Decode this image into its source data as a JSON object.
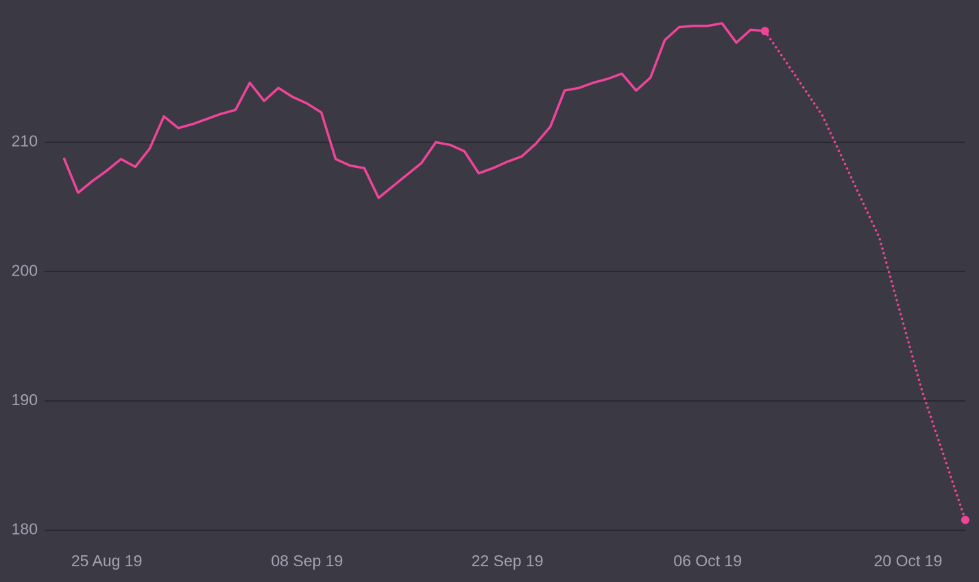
{
  "chart_data": {
    "type": "line",
    "xlim": [
      "2019-08-22",
      "2019-10-24"
    ],
    "xticks": [
      {
        "value": "2019-08-25",
        "label": "25 Aug 19"
      },
      {
        "value": "2019-09-08",
        "label": "08 Sep 19"
      },
      {
        "value": "2019-09-22",
        "label": "22 Sep 19"
      },
      {
        "value": "2019-10-06",
        "label": "06 Oct 19"
      },
      {
        "value": "2019-10-20",
        "label": "20 Oct 19"
      }
    ],
    "ylim": [
      176,
      221
    ],
    "yticks": [
      180,
      190,
      200,
      210
    ],
    "grid": true,
    "series": [
      {
        "color": "#f0449a",
        "style": "solid",
        "x": [
          "2019-08-22",
          "2019-08-23",
          "2019-08-24",
          "2019-08-25",
          "2019-08-26",
          "2019-08-27",
          "2019-08-28",
          "2019-08-29",
          "2019-08-30",
          "2019-08-31",
          "2019-09-01",
          "2019-09-02",
          "2019-09-03",
          "2019-09-04",
          "2019-09-05",
          "2019-09-06",
          "2019-09-07",
          "2019-09-08",
          "2019-09-09",
          "2019-09-10",
          "2019-09-11",
          "2019-09-12",
          "2019-09-13",
          "2019-09-14",
          "2019-09-15",
          "2019-09-16",
          "2019-09-17",
          "2019-09-18",
          "2019-09-19",
          "2019-09-20",
          "2019-09-21",
          "2019-09-22",
          "2019-09-23",
          "2019-09-24",
          "2019-09-25",
          "2019-09-26",
          "2019-09-27",
          "2019-09-28",
          "2019-09-29",
          "2019-09-30",
          "2019-10-01",
          "2019-10-02",
          "2019-10-03",
          "2019-10-04",
          "2019-10-05",
          "2019-10-06",
          "2019-10-07",
          "2019-10-08",
          "2019-10-09",
          "2019-10-10"
        ],
        "values": [
          208.8,
          206.1,
          207.0,
          207.8,
          208.7,
          208.1,
          209.5,
          212.0,
          211.1,
          211.4,
          211.8,
          212.2,
          212.5,
          214.6,
          213.2,
          214.2,
          213.5,
          213.0,
          212.3,
          208.7,
          208.2,
          208.0,
          205.7,
          206.6,
          207.5,
          208.4,
          210.0,
          209.8,
          209.3,
          207.6,
          208.0,
          208.5,
          208.9,
          209.9,
          211.2,
          214.0,
          214.2,
          214.6,
          214.9,
          215.3,
          214.0,
          215.0,
          217.9,
          218.9,
          219.0,
          219.0,
          219.2,
          217.7,
          218.7,
          218.6
        ]
      },
      {
        "color": "#f0449a",
        "style": "dotted",
        "markers": "ends",
        "x": [
          "2019-10-10",
          "2019-10-14",
          "2019-10-18",
          "2019-10-21",
          "2019-10-24"
        ],
        "values": [
          218.6,
          212.1,
          202.6,
          190.7,
          180.8
        ]
      }
    ]
  }
}
